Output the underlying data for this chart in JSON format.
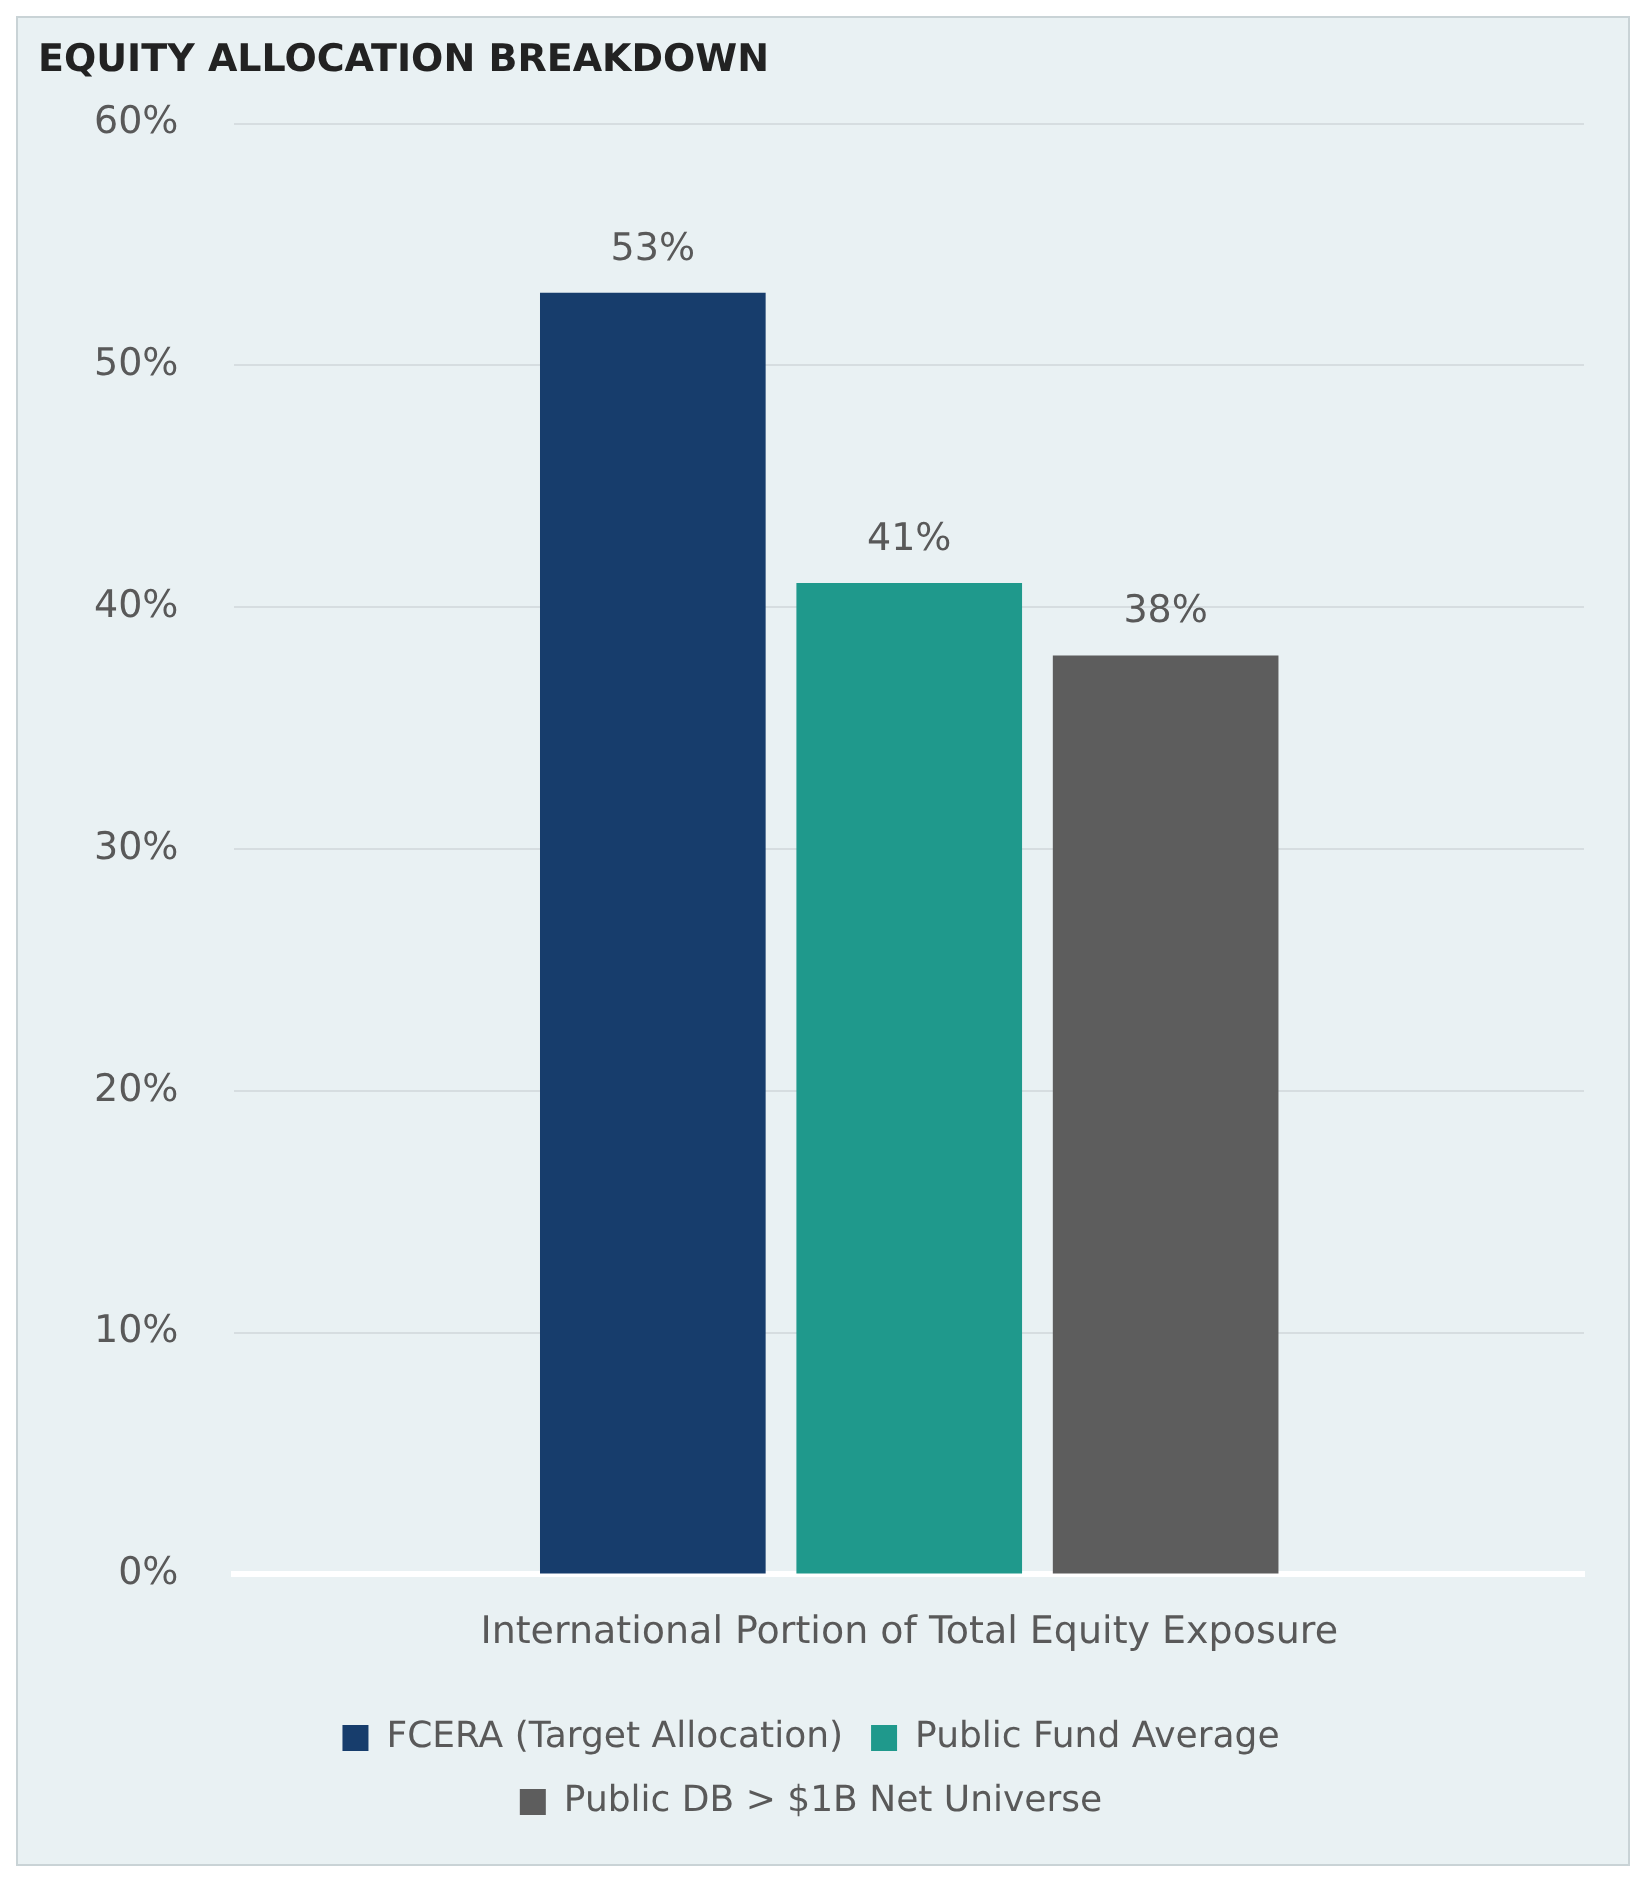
{
  "chart_data": {
    "type": "bar",
    "title": "EQUITY ALLOCATION BREAKDOWN",
    "categories": [
      "International Portion of Total Equity Exposure"
    ],
    "series": [
      {
        "name": "FCERA (Target Allocation)",
        "color": "#173d6c",
        "values": [
          53
        ],
        "value_labels": [
          "53%"
        ]
      },
      {
        "name": "Public Fund Average",
        "color": "#1f998c",
        "values": [
          41
        ],
        "value_labels": [
          "41%"
        ]
      },
      {
        "name": "Public DB > $1B Net Universe",
        "color": "#5d5d5d",
        "values": [
          38
        ],
        "value_labels": [
          "38%"
        ]
      }
    ],
    "ylim": [
      0,
      60
    ],
    "yticks": [
      {
        "value": 0,
        "label": "0%"
      },
      {
        "value": 10,
        "label": "10%"
      },
      {
        "value": 20,
        "label": "20%"
      },
      {
        "value": 30,
        "label": "30%"
      },
      {
        "value": 40,
        "label": "40%"
      },
      {
        "value": 50,
        "label": "50%"
      },
      {
        "value": 60,
        "label": "60%"
      }
    ],
    "grid": "y",
    "legend": "bottom"
  }
}
